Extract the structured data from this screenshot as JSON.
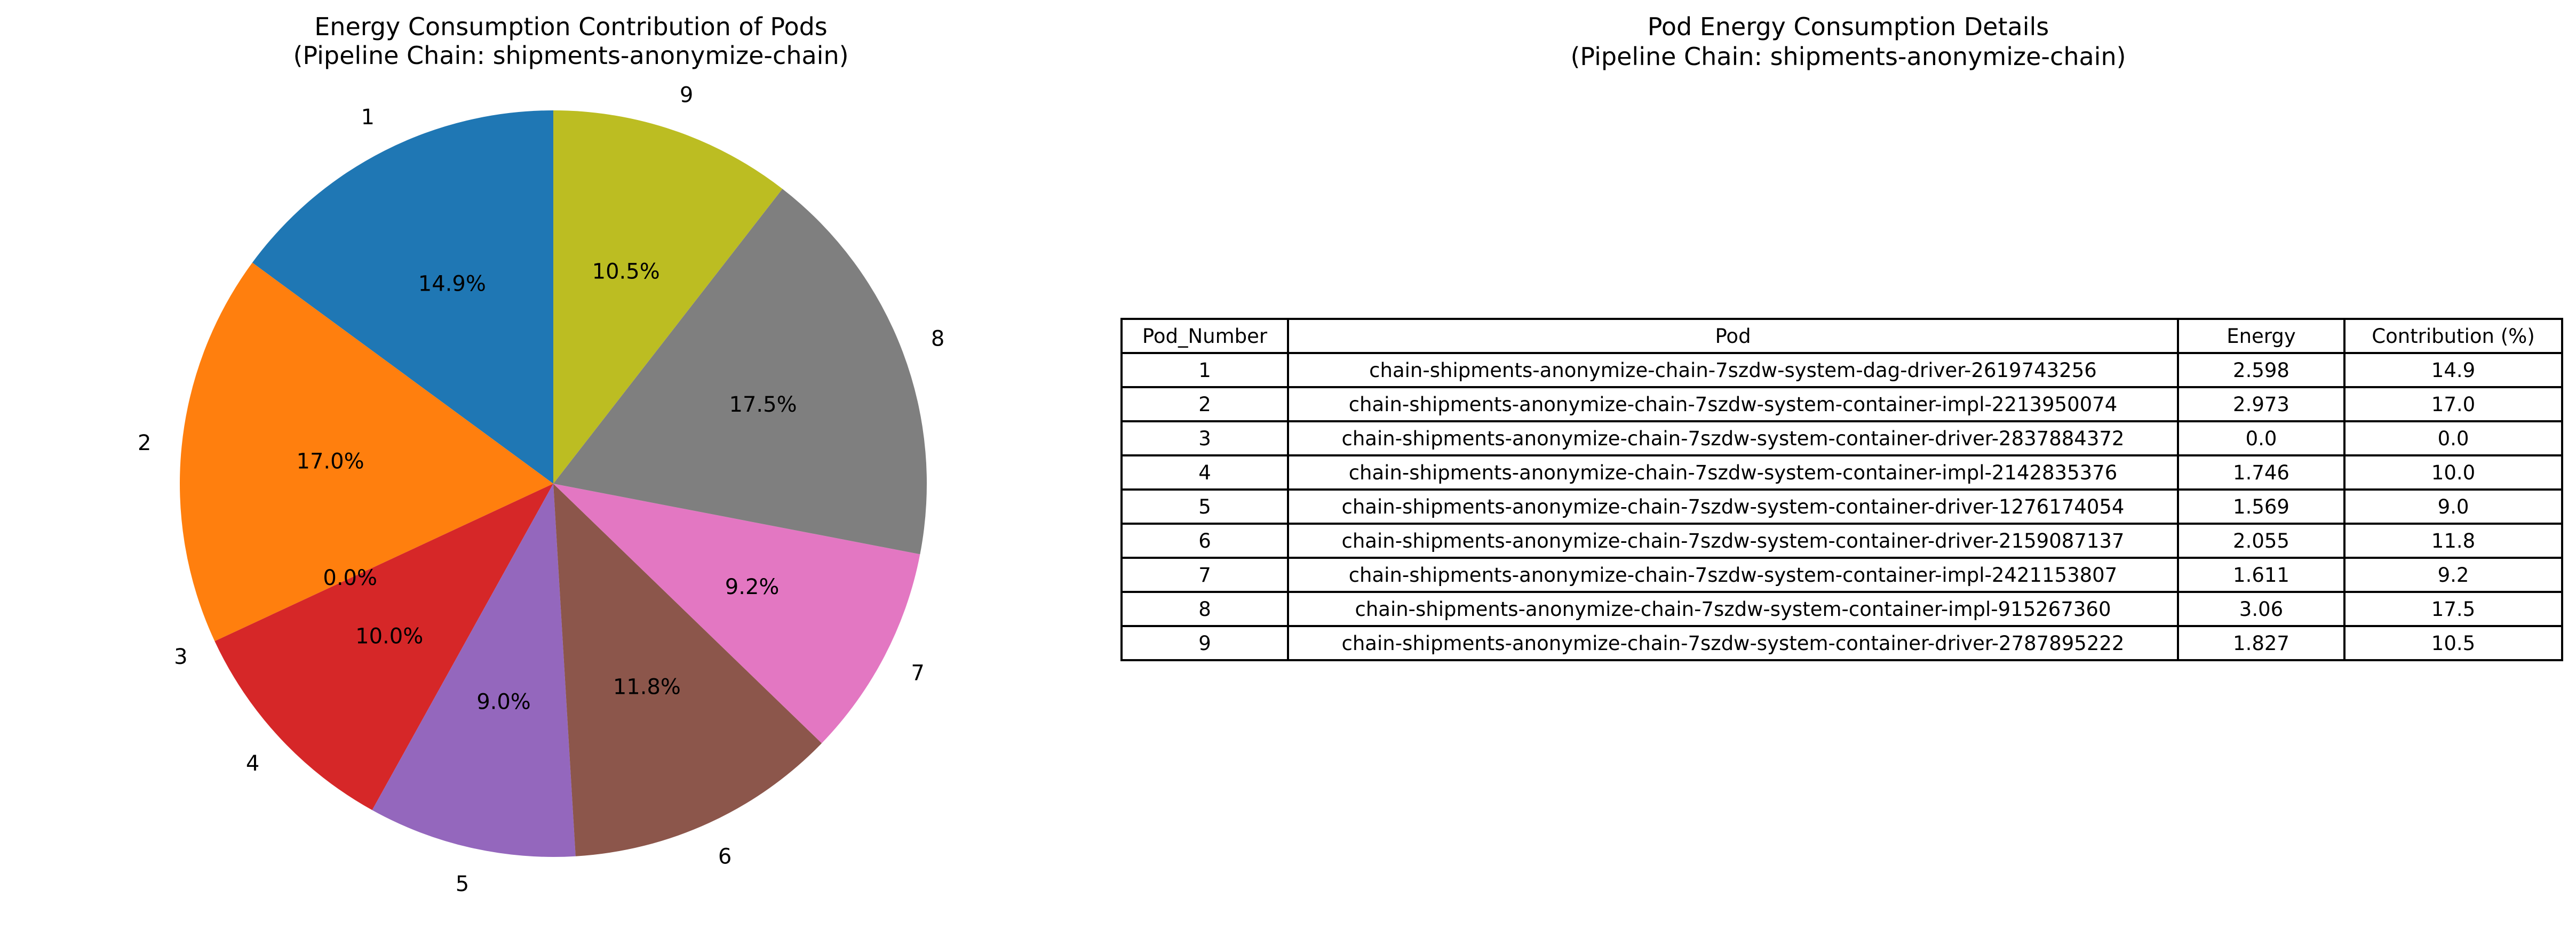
{
  "chart_data": [
    {
      "type": "pie",
      "title_lines": [
        "Energy Consumption Contribution of Pods",
        "(Pipeline Chain: shipments-anonymize-chain)"
      ],
      "start_angle_deg": 90,
      "direction": "counterclockwise",
      "slices": [
        {
          "label": "1",
          "value": 14.9,
          "pct_label": "14.9%",
          "color": "#1f77b4"
        },
        {
          "label": "2",
          "value": 17.0,
          "pct_label": "17.0%",
          "color": "#ff7f0e"
        },
        {
          "label": "3",
          "value": 0.0,
          "pct_label": "0.0%",
          "color": "#2ca02c"
        },
        {
          "label": "4",
          "value": 10.0,
          "pct_label": "10.0%",
          "color": "#d62728"
        },
        {
          "label": "5",
          "value": 9.0,
          "pct_label": "9.0%",
          "color": "#9467bd"
        },
        {
          "label": "6",
          "value": 11.8,
          "pct_label": "11.8%",
          "color": "#8c564b"
        },
        {
          "label": "7",
          "value": 9.2,
          "pct_label": "9.2%",
          "color": "#e377c2"
        },
        {
          "label": "8",
          "value": 17.5,
          "pct_label": "17.5%",
          "color": "#7f7f7f"
        },
        {
          "label": "9",
          "value": 10.5,
          "pct_label": "10.5%",
          "color": "#bcbd22"
        }
      ]
    },
    {
      "type": "table",
      "title_lines": [
        "Pod Energy Consumption Details",
        "(Pipeline Chain: shipments-anonymize-chain)"
      ],
      "columns": [
        "Pod_Number",
        "Pod",
        "Energy",
        "Contribution (%)"
      ],
      "rows": [
        [
          "1",
          "chain-shipments-anonymize-chain-7szdw-system-dag-driver-2619743256",
          "2.598",
          "14.9"
        ],
        [
          "2",
          "chain-shipments-anonymize-chain-7szdw-system-container-impl-2213950074",
          "2.973",
          "17.0"
        ],
        [
          "3",
          "chain-shipments-anonymize-chain-7szdw-system-container-driver-2837884372",
          "0.0",
          "0.0"
        ],
        [
          "4",
          "chain-shipments-anonymize-chain-7szdw-system-container-impl-2142835376",
          "1.746",
          "10.0"
        ],
        [
          "5",
          "chain-shipments-anonymize-chain-7szdw-system-container-driver-1276174054",
          "1.569",
          "9.0"
        ],
        [
          "6",
          "chain-shipments-anonymize-chain-7szdw-system-container-driver-2159087137",
          "2.055",
          "11.8"
        ],
        [
          "7",
          "chain-shipments-anonymize-chain-7szdw-system-container-impl-2421153807",
          "1.611",
          "9.2"
        ],
        [
          "8",
          "chain-shipments-anonymize-chain-7szdw-system-container-impl-915267360",
          "3.06",
          "17.5"
        ],
        [
          "9",
          "chain-shipments-anonymize-chain-7szdw-system-container-driver-2787895222",
          "1.827",
          "10.5"
        ]
      ]
    }
  ]
}
